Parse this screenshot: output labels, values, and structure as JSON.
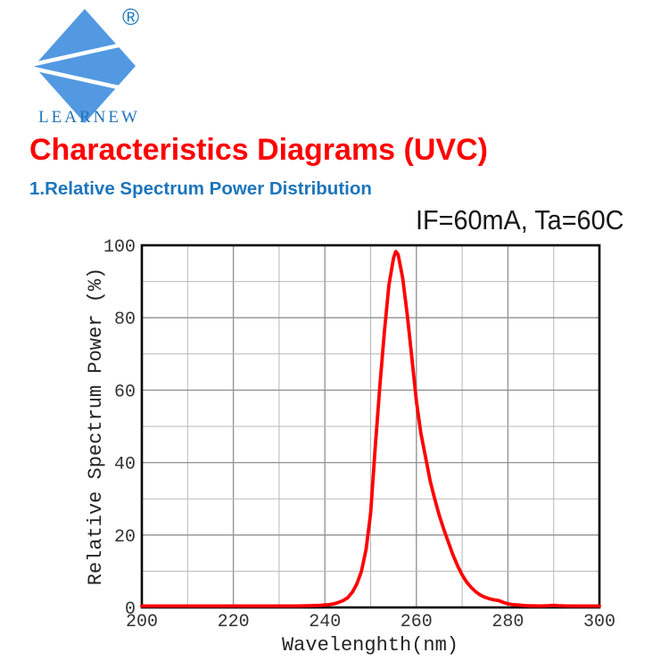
{
  "logo": {
    "brand": "LEARNEW",
    "registered_mark": "®",
    "diamond_color": "#5299e2",
    "text_color": "#2273b8"
  },
  "page": {
    "title": "Characteristics Diagrams (UVC)",
    "title_color": "#ff0000",
    "section_heading": "1.Relative Spectrum Power Distribution",
    "section_color": "#1b75bc",
    "condition_label": "IF=60mA, Ta=60C"
  },
  "chart_data": {
    "type": "line",
    "title": "",
    "xlabel": "Wavelenghth(nm)",
    "ylabel": "Relative Spectrum Power (%)",
    "xlim": [
      200,
      300
    ],
    "ylim": [
      0,
      100
    ],
    "x_major_ticks": [
      200,
      220,
      240,
      260,
      280,
      300
    ],
    "y_major_ticks": [
      0,
      20,
      40,
      60,
      80,
      100
    ],
    "minor_grid_step_x": 10,
    "minor_grid_step_y": 10,
    "grid": true,
    "legend": "none",
    "frame_color": "#000000",
    "major_grid_color": "#8f8f8f",
    "minor_grid_color": "#b8b8b8",
    "line_color": "#ff0000",
    "series": [
      {
        "name": "relative-spectrum-power",
        "x": [
          200,
          205,
          210,
          215,
          220,
          225,
          230,
          234,
          237,
          239,
          241,
          242,
          243,
          244,
          245,
          246,
          247,
          248,
          249,
          250,
          251,
          252,
          253,
          254,
          255,
          255.5,
          256,
          257,
          258,
          259,
          260,
          261,
          262,
          263,
          264,
          265,
          266,
          267,
          268,
          269,
          270,
          271,
          272,
          273,
          274,
          275,
          276,
          277,
          278,
          279,
          280,
          281,
          282,
          283,
          284,
          285,
          287,
          289,
          290,
          291,
          293,
          296,
          300
        ],
        "y": [
          0.4,
          0.4,
          0.4,
          0.4,
          0.4,
          0.4,
          0.4,
          0.4,
          0.5,
          0.6,
          0.8,
          1.0,
          1.4,
          1.9,
          2.7,
          4.2,
          6.5,
          10,
          16,
          26,
          44,
          61,
          76,
          89,
          96.5,
          98.3,
          97.5,
          91,
          81,
          69,
          57,
          48,
          41.5,
          35,
          30,
          25.5,
          21.5,
          18,
          14.5,
          11.5,
          9,
          7,
          5.5,
          4.3,
          3.4,
          2.8,
          2.4,
          2.1,
          1.9,
          1.4,
          1.0,
          0.8,
          0.7,
          0.6,
          0.5,
          0.45,
          0.4,
          0.5,
          0.6,
          0.5,
          0.4,
          0.4,
          0.4
        ]
      }
    ]
  }
}
